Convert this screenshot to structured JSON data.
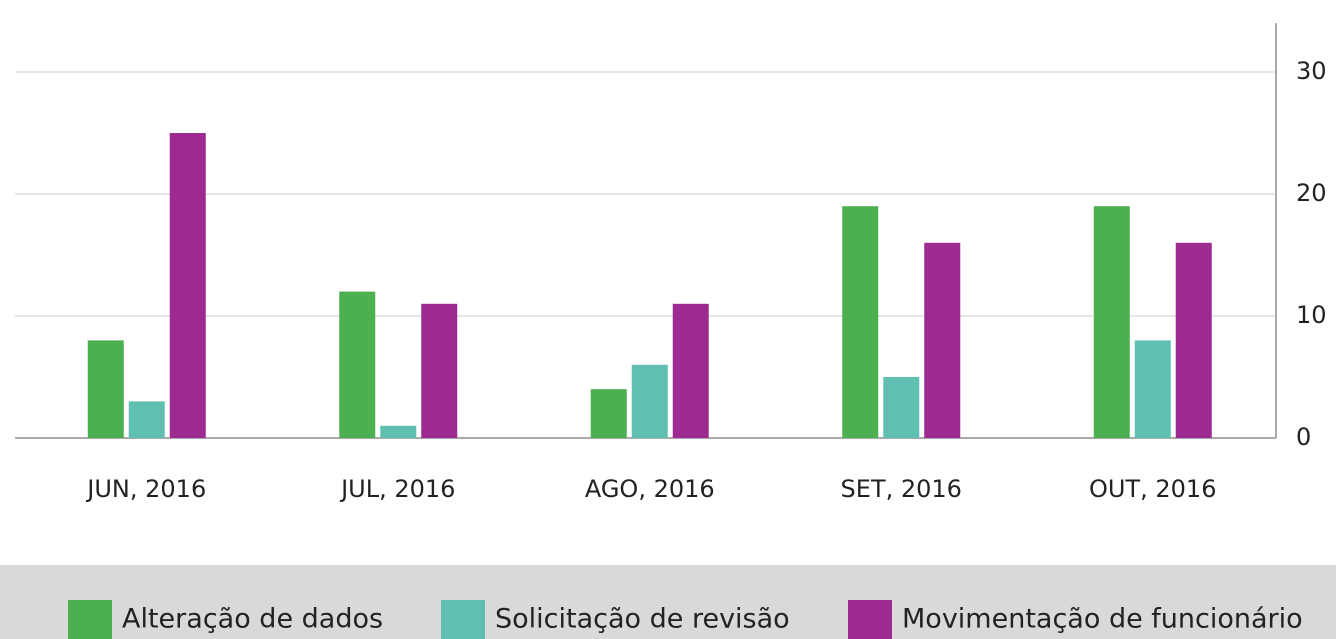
{
  "chart_data": {
    "type": "bar",
    "categories": [
      "JUN, 2016",
      "JUL, 2016",
      "AGO, 2016",
      "SET, 2016",
      "OUT, 2016"
    ],
    "series": [
      {
        "name": "Alteração de dados",
        "color": "#4caf50",
        "values": [
          8,
          12,
          4,
          19,
          19
        ]
      },
      {
        "name": "Solicitação de revisão",
        "color": "#5fbfb1",
        "values": [
          3,
          1,
          6,
          5,
          8
        ]
      },
      {
        "name": "Movimentação de funcionário",
        "color": "#9c2a91",
        "values": [
          25,
          11,
          11,
          16,
          16
        ]
      }
    ],
    "ylim": [
      0,
      34
    ],
    "yticks": [
      0,
      10,
      20,
      30
    ],
    "grid": true,
    "y_axis_side": "right",
    "legend": "bottom"
  }
}
